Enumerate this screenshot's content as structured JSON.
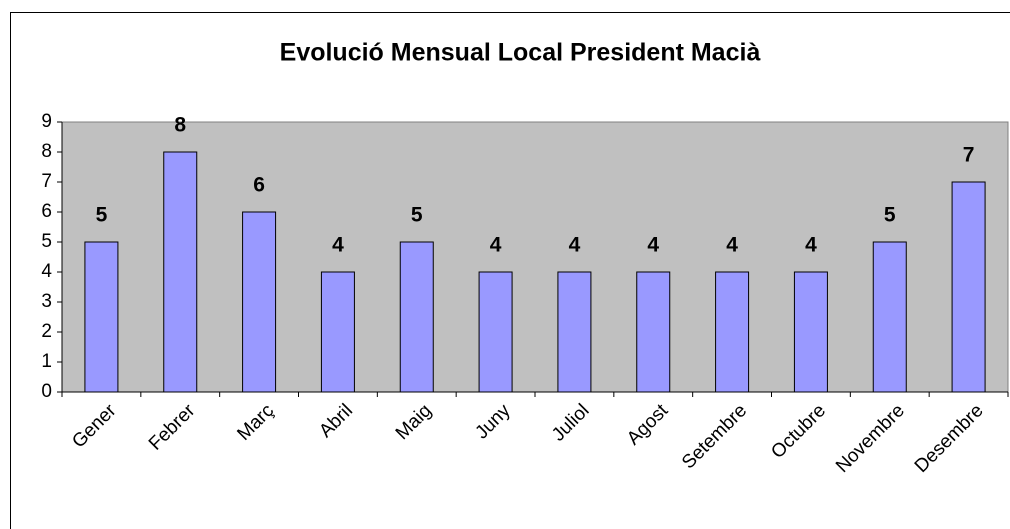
{
  "chart_data": {
    "type": "bar",
    "title": "Evolució Mensual Local President Macià",
    "categories": [
      "Gener",
      "Febrer",
      "Març",
      "Abril",
      "Maig",
      "Juny",
      "Juliol",
      "Agost",
      "Setembre",
      "Octubre",
      "Novembre",
      "Desembre"
    ],
    "values": [
      5,
      8,
      6,
      4,
      5,
      4,
      4,
      4,
      4,
      4,
      5,
      7
    ],
    "color": "#9999ff",
    "ylim": [
      0,
      9
    ],
    "yticks": [
      0,
      1,
      2,
      3,
      4,
      5,
      6,
      7,
      8,
      9
    ]
  }
}
